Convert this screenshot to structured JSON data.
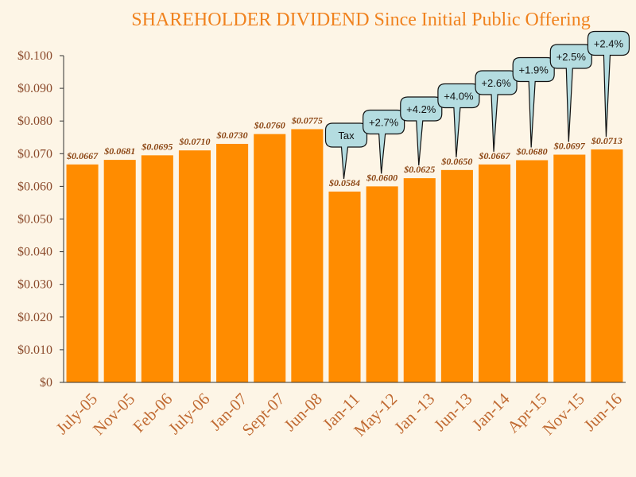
{
  "chart_data": {
    "type": "bar",
    "title": "SHAREHOLDER DIVIDEND Since Initial Public Offering",
    "xlabel": "",
    "ylabel": "",
    "ylim": [
      0,
      0.1
    ],
    "yticks": [
      "$0",
      "$0.010",
      "$0.020",
      "$0.030",
      "$0.040",
      "$0.050",
      "$0.060",
      "$0.070",
      "$0.080",
      "$0.090",
      "$0.100"
    ],
    "categories": [
      "July-05",
      "Nov-05",
      "Feb-06",
      "July-06",
      "Jan-07",
      "Sept-07",
      "Jun-08",
      "Jan-11",
      "May-12",
      "Jan -13",
      "Jun-13",
      "Jan-14",
      "Apr-15",
      "Nov-15",
      "Jun-16"
    ],
    "values": [
      0.0667,
      0.0681,
      0.0695,
      0.071,
      0.073,
      0.076,
      0.0775,
      0.0584,
      0.06,
      0.0625,
      0.065,
      0.0667,
      0.068,
      0.0697,
      0.0713
    ],
    "data_labels": [
      "$0.0667",
      "$0.0681",
      "$0.0695",
      "$0.0710",
      "$0.0730",
      "$0.0760",
      "$0.0775",
      "$0.0584",
      "$0.0600",
      "$0.0625",
      "$0.0650",
      "$0.0667",
      "$0.0680",
      "$0.0697",
      "$0.0713"
    ],
    "annotations": [
      {
        "category_index": 7,
        "text": "Tax"
      },
      {
        "category_index": 8,
        "text": "+2.7%"
      },
      {
        "category_index": 9,
        "text": "+4.2%"
      },
      {
        "category_index": 10,
        "text": "+4.0%"
      },
      {
        "category_index": 11,
        "text": "+2.6%"
      },
      {
        "category_index": 12,
        "text": "+1.9%"
      },
      {
        "category_index": 13,
        "text": "+2.5%"
      },
      {
        "category_index": 14,
        "text": "+2.4%"
      }
    ],
    "colors": {
      "bar": "#ff8c00",
      "background": "#fdf5e6",
      "title": "#f0821e",
      "callout_fill": "#b4dce0"
    },
    "grid": false
  }
}
